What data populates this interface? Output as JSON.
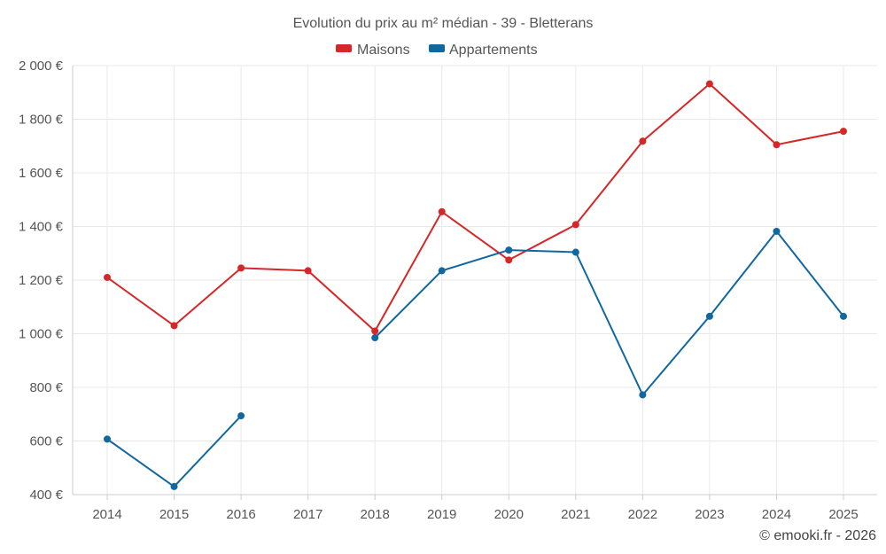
{
  "chart_data": {
    "type": "line",
    "title": "Evolution du prix au m² médian - 39 - Bletterans",
    "categories": [
      "2014",
      "2015",
      "2016",
      "2017",
      "2018",
      "2019",
      "2020",
      "2021",
      "2022",
      "2023",
      "2024",
      "2025"
    ],
    "series": [
      {
        "name": "Maisons",
        "color": "#d62728",
        "values": [
          1210,
          1030,
          1245,
          1235,
          1010,
          1455,
          1275,
          1407,
          1718,
          1932,
          1705,
          1755
        ]
      },
      {
        "name": "Appartements",
        "color": "#1168a0",
        "values": [
          607,
          430,
          694,
          null,
          985,
          1235,
          1312,
          1304,
          772,
          1065,
          1382,
          1065
        ]
      }
    ],
    "ylim": [
      400,
      2000
    ],
    "yticks": [
      400,
      600,
      800,
      1000,
      1200,
      1400,
      1600,
      1800,
      2000
    ],
    "ytick_labels": [
      "400 €",
      "600 €",
      "800 €",
      "1 000 €",
      "1 200 €",
      "1 400 €",
      "1 600 €",
      "1 800 €",
      "2 000 €"
    ],
    "xlabel": "",
    "ylabel": "",
    "grid": true,
    "legend_position": "top-center"
  },
  "credit": "© emooki.fr - 2026"
}
